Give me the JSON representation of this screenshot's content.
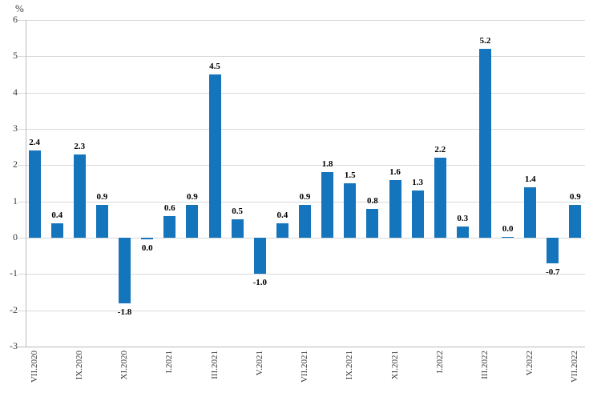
{
  "chart_data": {
    "type": "bar",
    "title": "",
    "ylabel": "%",
    "xlabel": "",
    "ylim": [
      -3,
      6
    ],
    "yticks": [
      "6",
      "5",
      "4",
      "3",
      "2",
      "1",
      "0",
      "-1",
      "-2",
      "-3"
    ],
    "grid": true,
    "legend": false,
    "axis_label_rotation": "vertical",
    "bar_color": "#1474BC",
    "grid_color": "#D9D9D9",
    "axis_color": "#B9B9B9",
    "value_label_color": "#000000",
    "tick_label_color": "#3C3C3C",
    "categories": [
      "VII.2020",
      "IX.2020",
      "XI.2020",
      "I.2021",
      "III.2021",
      "V.2021",
      "VII.2021",
      "IX.2021",
      "XI.2021",
      "I.2022",
      "III.2022",
      "V.2022",
      "VII.2022"
    ],
    "bars": [
      {
        "axis_label": "VII.2020",
        "value": 2.4,
        "value_label": "2.4"
      },
      {
        "axis_label": "",
        "value": 0.4,
        "value_label": "0.4"
      },
      {
        "axis_label": "IX.2020",
        "value": 2.3,
        "value_label": "2.3"
      },
      {
        "axis_label": "",
        "value": 0.9,
        "value_label": "0.9"
      },
      {
        "axis_label": "XI.2020",
        "value": -1.8,
        "value_label": "-1.8"
      },
      {
        "axis_label": "",
        "value": 0.0,
        "value_label": "0.0",
        "label_side": "below"
      },
      {
        "axis_label": "I.2021",
        "value": 0.6,
        "value_label": "0.6"
      },
      {
        "axis_label": "",
        "value": 0.9,
        "value_label": "0.9"
      },
      {
        "axis_label": "III.2021",
        "value": 4.5,
        "value_label": "4.5"
      },
      {
        "axis_label": "",
        "value": 0.5,
        "value_label": "0.5"
      },
      {
        "axis_label": "V.2021",
        "value": -1.0,
        "value_label": "-1.0"
      },
      {
        "axis_label": "",
        "value": 0.4,
        "value_label": "0.4"
      },
      {
        "axis_label": "VII.2021",
        "value": 0.9,
        "value_label": "0.9"
      },
      {
        "axis_label": "",
        "value": 1.8,
        "value_label": "1.8"
      },
      {
        "axis_label": "IX.2021",
        "value": 1.5,
        "value_label": "1.5"
      },
      {
        "axis_label": "",
        "value": 0.8,
        "value_label": "0.8"
      },
      {
        "axis_label": "XI.2021",
        "value": 1.6,
        "value_label": "1.6"
      },
      {
        "axis_label": "",
        "value": 1.3,
        "value_label": "1.3"
      },
      {
        "axis_label": "I.2022",
        "value": 2.2,
        "value_label": "2.2"
      },
      {
        "axis_label": "",
        "value": 0.3,
        "value_label": "0.3"
      },
      {
        "axis_label": "III.2022",
        "value": 5.2,
        "value_label": "5.2"
      },
      {
        "axis_label": "",
        "value": 0.0,
        "value_label": "0.0"
      },
      {
        "axis_label": "V.2022",
        "value": 1.4,
        "value_label": "1.4"
      },
      {
        "axis_label": "",
        "value": -0.7,
        "value_label": "-0.7"
      },
      {
        "axis_label": "VII.2022",
        "value": 0.9,
        "value_label": "0.9"
      }
    ]
  }
}
